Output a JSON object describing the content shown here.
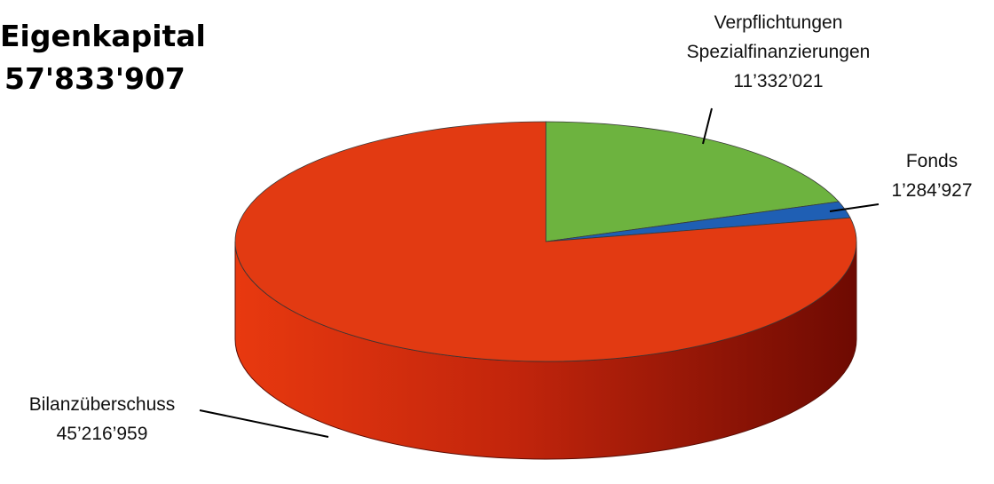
{
  "chart_data": {
    "type": "pie",
    "title": "Eigenkapital",
    "total_label": "57'833'907",
    "total_value": 57833907,
    "slices": [
      {
        "name": "Verpflichtungen Spezialfinanzierungen",
        "label_lines": [
          "Verpflichtungen",
          "Spezialfinanzierungen"
        ],
        "value_label": "11’332’021",
        "value": 11332021,
        "color": "#6db33f"
      },
      {
        "name": "Fonds",
        "label_lines": [
          "Fonds"
        ],
        "value_label": "1’284’927",
        "value": 1284927,
        "color": "#1f5fb4"
      },
      {
        "name": "Bilanzüberschuss",
        "label_lines": [
          "Bilanzüberschuss"
        ],
        "value_label": "45’216’959",
        "value": 45216959,
        "color": "#e23a12"
      }
    ],
    "start_angle_deg": 0,
    "direction": "clockwise",
    "style": "3d"
  }
}
